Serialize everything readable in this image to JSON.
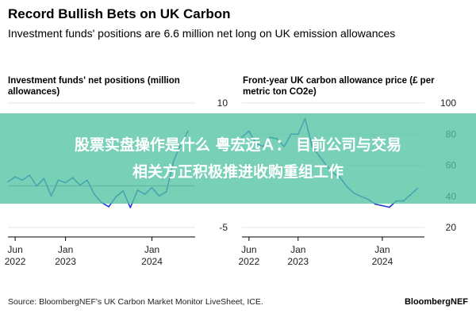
{
  "header": {
    "title": "Record Bullish Bets on UK Carbon",
    "subtitle": "Investment funds' positions are 6.6 million net long on UK emission allowances"
  },
  "banner": {
    "line1": "股票实盘操作是什么 粤宏远Ａ： 目前公司与交易",
    "line2": "相关方正积极推进收购重组工作",
    "color": "#52c4a3"
  },
  "footer": {
    "source": "Source: BloombergNEF's UK Carbon Market Monitor LiveSheet, ICE.",
    "brand": "BloombergNEF"
  },
  "colors": {
    "line": "#1e3bd6",
    "zero_line": "#888888",
    "grid": "#e6e6e6"
  },
  "chart_data": [
    {
      "type": "line",
      "title": "Investment funds' net positions (million allowances)",
      "ylim": [
        -5,
        10
      ],
      "yticks": [
        10,
        -5
      ],
      "y_tick_labels": [
        "10",
        "-5"
      ],
      "zero_line": true,
      "x_ticks": [
        {
          "date": "2022-06",
          "line1": "Jun",
          "line2": "2022"
        },
        {
          "date": "2023-01",
          "line1": "Jan",
          "line2": "2023"
        },
        {
          "date": "2024-01",
          "line1": "Jan",
          "line2": "2024"
        }
      ],
      "xlim": [
        "2022-05",
        "2024-07"
      ],
      "series": [
        {
          "x": [
            "2022-05",
            "2022-06",
            "2022-07",
            "2022-08",
            "2022-09",
            "2022-10",
            "2022-11",
            "2022-12",
            "2023-01",
            "2023-02",
            "2023-03",
            "2023-04",
            "2023-05",
            "2023-06",
            "2023-07",
            "2023-08",
            "2023-09",
            "2023-10",
            "2023-11",
            "2023-12",
            "2024-01",
            "2024-02",
            "2024-03",
            "2024-04",
            "2024-05",
            "2024-06"
          ],
          "values": [
            0.5,
            1.1,
            0.7,
            1.3,
            0.0,
            0.9,
            -1.2,
            0.7,
            0.4,
            1.0,
            0.1,
            0.7,
            -1.0,
            -2.0,
            -2.5,
            -1.3,
            -0.6,
            -2.6,
            -0.5,
            -1.0,
            -0.2,
            -1.2,
            -0.7,
            3.0,
            5.0,
            6.6
          ]
        }
      ]
    },
    {
      "type": "line",
      "title": "Front-year UK carbon allowance price (£ per metric ton CO2e)",
      "ylim": [
        20,
        100
      ],
      "yticks": [
        100,
        80,
        60,
        40,
        20
      ],
      "y_tick_labels": [
        "100",
        "80",
        "60",
        "40",
        "20"
      ],
      "zero_line": false,
      "x_ticks": [
        {
          "date": "2022-06",
          "line1": "Jun",
          "line2": "2022"
        },
        {
          "date": "2023-01",
          "line1": "Jan",
          "line2": "2023"
        },
        {
          "date": "2024-01",
          "line1": "Jan",
          "line2": "2024"
        }
      ],
      "xlim": [
        "2022-05",
        "2024-07"
      ],
      "series": [
        {
          "x": [
            "2022-05",
            "2022-06",
            "2022-07",
            "2022-08",
            "2022-09",
            "2022-10",
            "2022-11",
            "2022-12",
            "2023-01",
            "2023-02",
            "2023-03",
            "2023-04",
            "2023-05",
            "2023-06",
            "2023-07",
            "2023-08",
            "2023-09",
            "2023-10",
            "2023-11",
            "2023-12",
            "2024-01",
            "2024-02",
            "2024-03",
            "2024-04",
            "2024-05",
            "2024-06"
          ],
          "values": [
            78,
            82,
            74,
            72,
            78,
            77,
            72,
            80,
            80,
            90,
            72,
            66,
            60,
            55,
            52,
            46,
            42,
            40,
            38,
            35,
            34,
            33,
            37,
            37,
            41,
            45
          ]
        }
      ]
    }
  ]
}
